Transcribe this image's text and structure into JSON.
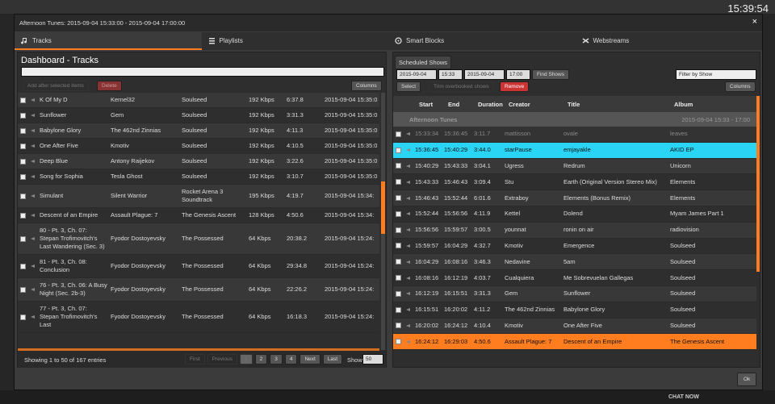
{
  "topbar": {
    "clock": "15:39:54"
  },
  "dialog": {
    "title": "Afternoon Tunes: 2015-09-04 15:33:00 - 2015-09-04 17:00:00",
    "close": "×"
  },
  "tabs": [
    "Tracks",
    "Playlists",
    "Smart Blocks",
    "Webstreams"
  ],
  "tracks": {
    "title": "Dashboard - Tracks",
    "add": "Add after selected items",
    "delete": "Delete",
    "columns": "Columns",
    "rows": [
      [
        "K Of My D",
        "Kernel32",
        "Soulseed",
        "192 Kbps",
        "6:37.8",
        "2015-09-04 15:35:0"
      ],
      [
        "Sunflower",
        "Gem",
        "Soulseed",
        "192 Kbps",
        "3:31.3",
        "2015-09-04 15:35:0"
      ],
      [
        "Babylone Glory",
        "The 462nd Zinnias",
        "Soulseed",
        "192 Kbps",
        "4:11.3",
        "2015-09-04 15:35:0"
      ],
      [
        "One After Five",
        "Kmotiv",
        "Soulseed",
        "192 Kbps",
        "4:10.5",
        "2015-09-04 15:35:0"
      ],
      [
        "Deep Blue",
        "Antony Raijekov",
        "Soulseed",
        "192 Kbps",
        "3:22.6",
        "2015-09-04 15:35:0"
      ],
      [
        "Song for Sophia",
        "Tesla Ghost",
        "Soulseed",
        "192 Kbps",
        "3:10.7",
        "2015-09-04 15:35:0"
      ],
      [
        "Simulant",
        "Silent Warrior",
        "Rocket Arena 3 Soundtrack",
        "195 Kbps",
        "4:19.7",
        "2015-09-04 15:34:"
      ],
      [
        "Descent of an Empire",
        "Assault Plague: 7",
        "The Genesis Ascent",
        "128 Kbps",
        "4:50.6",
        "2015-09-04 15:34:"
      ],
      [
        "80 - Pt. 3, Ch. 07: Stepan Trofimovitch's Last Wandering (Sec. 3)",
        "Fyodor Dostoyevsky",
        "The Possessed",
        "64 Kbps",
        "20:38.2",
        "2015-09-04 15:24:"
      ],
      [
        "81 - Pt. 3, Ch. 08: Conclusion",
        "Fyodor Dostoyevsky",
        "The Possessed",
        "64 Kbps",
        "29:34.8",
        "2015-09-04 15:24:"
      ],
      [
        "76 - Pt. 3, Ch. 06: A Busy Night (Sec. 2b-3)",
        "Fyodor Dostoyevsky",
        "The Possessed",
        "64 Kbps",
        "22:26.2",
        "2015-09-04 15:24:"
      ],
      [
        "77 - Pt. 3, Ch. 07: Stepan Trofimovitch's Last",
        "Fyodor Dostoyevsky",
        "The Possessed",
        "64 Kbps",
        "16:18.3",
        "2015-09-04 15:24:"
      ]
    ],
    "info": "Showing 1 to 50 of 167 entries",
    "pager": [
      "First",
      "Previous",
      "1",
      "2",
      "3",
      "4",
      "Next",
      "Last"
    ],
    "show_label": "Show",
    "page_size": "50"
  },
  "schedule": {
    "tab": "Scheduled Shows",
    "start_date": "2015-09-04",
    "start_time": "15:33",
    "end_date": "2015-09-04",
    "end_time": "17:00",
    "find": "Find Shows",
    "filter": "Filter by Show",
    "select": "Select",
    "trim": "Trim overbooked shows",
    "remove": "Remove",
    "columns": "Columns",
    "headers": [
      "Start",
      "End",
      "Duration",
      "Creator",
      "Title",
      "Album"
    ],
    "show": {
      "name": "Afternoon Tunes",
      "range": "2015-09-04 15:33 - 17:00"
    },
    "rows": [
      [
        "15:33:34",
        "15:36:45",
        "3:11.7",
        "mattisson",
        "ovale",
        "leaves"
      ],
      [
        "15:36:45",
        "15:40:29",
        "3:44.0",
        "starPause",
        "emjayakle",
        "AKID EP"
      ],
      [
        "15:40:29",
        "15:43:33",
        "3:04.1",
        "Ugress",
        "Redrum",
        "Unicorn"
      ],
      [
        "15:43:33",
        "15:46:43",
        "3:09.4",
        "Stu",
        "Earth (Original Version Stereo Mix)",
        "Elements"
      ],
      [
        "15:46:43",
        "15:52:44",
        "6:01.6",
        "Extraboy",
        "Elements (Bonus Remix)",
        "Elements"
      ],
      [
        "15:52:44",
        "15:56:56",
        "4:11.9",
        "Kettel",
        "Dolend",
        "Myam James Part 1"
      ],
      [
        "15:56:56",
        "15:59:57",
        "3:00.5",
        "younnat",
        "ronin on air",
        "radiovision"
      ],
      [
        "15:59:57",
        "16:04:29",
        "4:32.7",
        "Kmotiv",
        "Emergence",
        "Soulseed"
      ],
      [
        "16:04:29",
        "16:08:16",
        "3:46.3",
        "Nedavine",
        "5am",
        "Soulseed"
      ],
      [
        "16:08:16",
        "16:12:19",
        "4:03.7",
        "Cualquiera",
        "Me Sobrevuelan Gallegas",
        "Soulseed"
      ],
      [
        "16:12:19",
        "16:15:51",
        "3:31.3",
        "Gem",
        "Sunflower",
        "Soulseed"
      ],
      [
        "16:15:51",
        "16:20:02",
        "4:11.2",
        "The 462nd Zinnias",
        "Babylone Glory",
        "Soulseed"
      ],
      [
        "16:20:02",
        "16:24:12",
        "4:10.4",
        "Kmotiv",
        "One After Five",
        "Soulseed"
      ],
      [
        "16:24:12",
        "16:29:03",
        "4:50.6",
        "Assault Plague: 7",
        "Descent of an Empire",
        "The Genesis Ascent"
      ]
    ]
  },
  "ok": "Ok",
  "chat": "CHAT NOW"
}
